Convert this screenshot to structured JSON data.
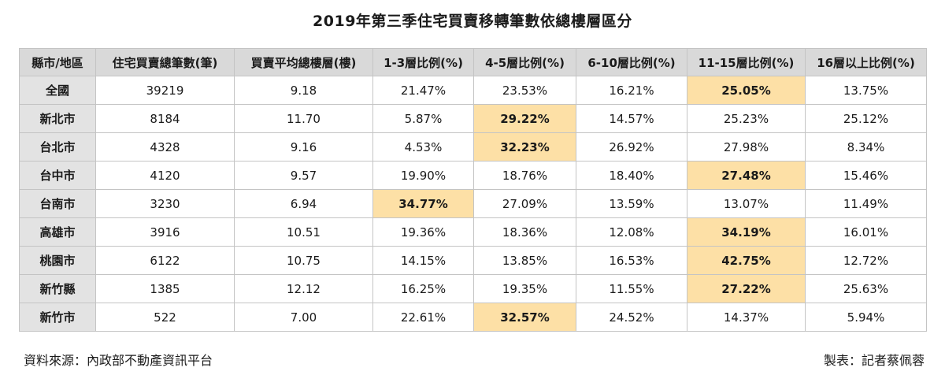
{
  "title": "2019年第三季住宅買賣移轉筆數依總樓層區分",
  "footer": {
    "source": "資料來源：內政部不動產資訊平台",
    "credit": "製表：記者蔡佩蓉"
  },
  "colors": {
    "header_bg": "#d9d9d9",
    "region_bg": "#e3e3e3",
    "highlight_bg": "#fde0a6",
    "border": "#c4c4c4"
  },
  "chart_data": {
    "type": "table",
    "columns": [
      "縣市/地區",
      "住宅買賣總筆數(筆)",
      "買賣平均總樓層(樓)",
      "1-3層比例(%)",
      "4-5層比例(%)",
      "6-10層比例(%)",
      "11-15層比例(%)",
      "16層以上比例(%)"
    ],
    "rows": [
      {
        "region": "全國",
        "cells": [
          "39219",
          "9.18",
          "21.47%",
          "23.53%",
          "16.21%",
          "25.05%",
          "13.75%"
        ],
        "highlight": 5
      },
      {
        "region": "新北市",
        "cells": [
          "8184",
          "11.70",
          "5.87%",
          "29.22%",
          "14.57%",
          "25.23%",
          "25.12%"
        ],
        "highlight": 3
      },
      {
        "region": "台北市",
        "cells": [
          "4328",
          "9.16",
          "4.53%",
          "32.23%",
          "26.92%",
          "27.98%",
          "8.34%"
        ],
        "highlight": 3
      },
      {
        "region": "台中市",
        "cells": [
          "4120",
          "9.57",
          "19.90%",
          "18.76%",
          "18.40%",
          "27.48%",
          "15.46%"
        ],
        "highlight": 5
      },
      {
        "region": "台南市",
        "cells": [
          "3230",
          "6.94",
          "34.77%",
          "27.09%",
          "13.59%",
          "13.07%",
          "11.49%"
        ],
        "highlight": 2
      },
      {
        "region": "高雄市",
        "cells": [
          "3916",
          "10.51",
          "19.36%",
          "18.36%",
          "12.08%",
          "34.19%",
          "16.01%"
        ],
        "highlight": 5
      },
      {
        "region": "桃園市",
        "cells": [
          "6122",
          "10.75",
          "14.15%",
          "13.85%",
          "16.53%",
          "42.75%",
          "12.72%"
        ],
        "highlight": 5
      },
      {
        "region": "新竹縣",
        "cells": [
          "1385",
          "12.12",
          "16.25%",
          "19.35%",
          "11.55%",
          "27.22%",
          "25.63%"
        ],
        "highlight": 5
      },
      {
        "region": "新竹市",
        "cells": [
          "522",
          "7.00",
          "22.61%",
          "32.57%",
          "24.52%",
          "14.37%",
          "5.94%"
        ],
        "highlight": 3
      }
    ]
  }
}
